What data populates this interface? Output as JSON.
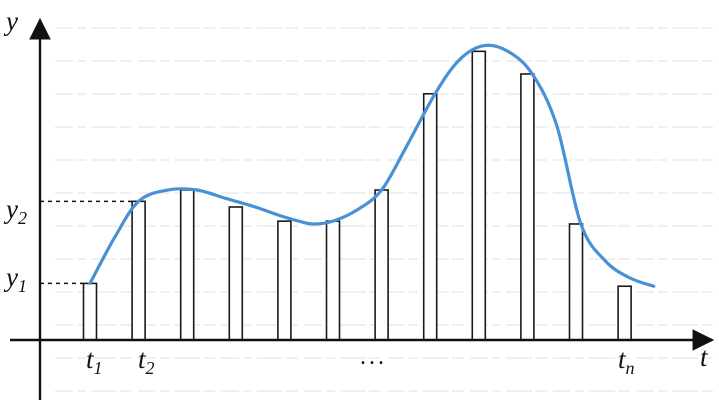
{
  "colors": {
    "curve": "#4a90d6",
    "bar_stroke": "#1a1a1a",
    "axis": "#111111",
    "background_text": "#b8b8b8"
  },
  "labels": {
    "y_axis": "y",
    "t_axis": "t",
    "y1": "y",
    "y1_sub": "1",
    "y2": "y",
    "y2_sub": "2",
    "t1": "t",
    "t1_sub": "1",
    "t2": "t",
    "t2_sub": "2",
    "ellipsis": "...",
    "tn": "t",
    "tn_sub": "n"
  },
  "chart_data": {
    "type": "bar",
    "description_of_values": "sampled heights of a continuous signal at times t1..tn (relative units)",
    "samples": [
      1.0,
      2.45,
      2.65,
      2.35,
      2.1,
      2.1,
      2.65,
      4.35,
      5.1,
      4.7,
      2.05,
      0.95
    ],
    "curve": {
      "x": [
        0,
        0.5,
        1.0,
        1.6,
        2.2,
        2.8,
        3.4,
        3.9,
        4.3,
        4.6,
        5.0,
        5.5,
        6.0,
        6.5,
        7.1,
        7.6,
        8.1,
        8.6,
        9.1,
        9.6,
        10.1,
        10.6,
        11.1,
        11.6
      ],
      "y": [
        1.0,
        1.8,
        2.45,
        2.65,
        2.65,
        2.5,
        2.35,
        2.2,
        2.1,
        2.05,
        2.1,
        2.3,
        2.65,
        3.4,
        4.35,
        4.95,
        5.2,
        5.1,
        4.7,
        3.8,
        2.05,
        1.4,
        1.1,
        0.95
      ]
    },
    "reference_levels": {
      "y1": 1.0,
      "y2": 2.45
    }
  }
}
